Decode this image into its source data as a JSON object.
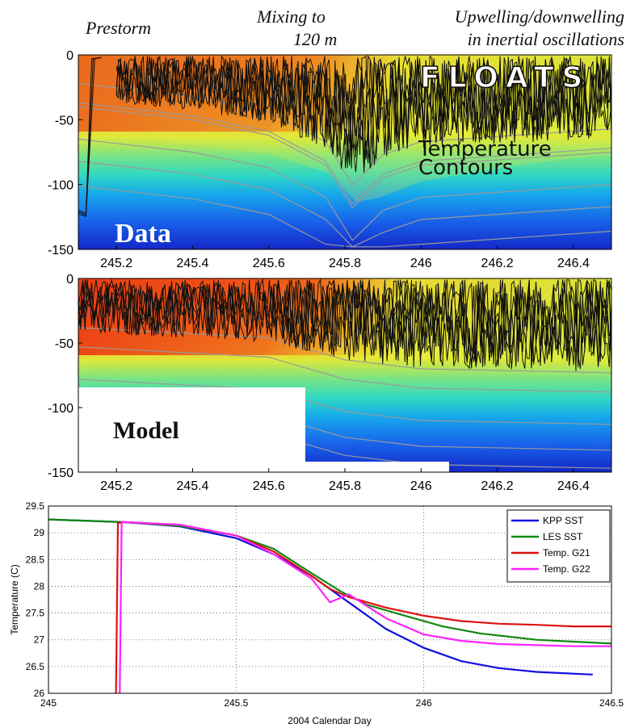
{
  "annotations": {
    "prestorm": "Prestorm",
    "mixing_line1": "Mixing to",
    "mixing_line2": "120 m",
    "upwelling_line1": "Upwelling/downwelling",
    "upwelling_line2": "in inertial oscillations"
  },
  "panel_labels": {
    "floats": "FLOATS",
    "temp_contours_line1": "Temperature",
    "temp_contours_line2": "Contours",
    "data": "Data",
    "model": "Model"
  },
  "colors": {
    "kpp": "#1010e0",
    "les": "#118811",
    "g21": "#dd1111",
    "g22": "#ff22ff",
    "float_track": "#111111",
    "contour": "#9a9a9a"
  },
  "chart_data": [
    {
      "type": "heatmap",
      "panel": "Data",
      "xlim": [
        245.1,
        246.5
      ],
      "ylim": [
        -150,
        0
      ],
      "x_ticks": [
        "245.2",
        "245.4",
        "245.6",
        "245.8",
        "246",
        "246.2",
        "246.4"
      ],
      "y_ticks": [
        "0",
        "-50",
        "-100",
        "-150"
      ],
      "mixed_layer_depth": [
        {
          "x": 245.1,
          "depth": 40
        },
        {
          "x": 245.4,
          "depth": 50
        },
        {
          "x": 245.6,
          "depth": 62
        },
        {
          "x": 245.75,
          "depth": 85
        },
        {
          "x": 245.82,
          "depth": 118
        },
        {
          "x": 245.9,
          "depth": 95
        },
        {
          "x": 246.0,
          "depth": 85
        },
        {
          "x": 246.5,
          "depth": 75
        }
      ]
    },
    {
      "type": "heatmap",
      "panel": "Model",
      "xlim": [
        245.1,
        246.5
      ],
      "ylim": [
        -150,
        0
      ],
      "x_ticks": [
        "245.2",
        "245.4",
        "245.6",
        "245.8",
        "246",
        "246.2",
        "246.4"
      ],
      "y_ticks": [
        "0",
        "-50",
        "-100",
        "-150"
      ],
      "mixed_layer_depth": [
        {
          "x": 245.1,
          "depth": 50
        },
        {
          "x": 245.6,
          "depth": 58
        },
        {
          "x": 245.8,
          "depth": 75
        },
        {
          "x": 246.0,
          "depth": 82
        },
        {
          "x": 246.5,
          "depth": 85
        }
      ]
    },
    {
      "type": "line",
      "xlabel": "2004 Calendar Day",
      "ylabel": "Temperature (C)",
      "xlim": [
        245,
        246.5
      ],
      "ylim": [
        26,
        29.5
      ],
      "x_ticks": [
        "245",
        "245.5",
        "246",
        "246.5"
      ],
      "y_ticks": [
        "26",
        "26.5",
        "27",
        "27.5",
        "28",
        "28.5",
        "29",
        "29.5"
      ],
      "grid": true,
      "legend": "top-right",
      "series": [
        {
          "name": "KPP SST",
          "color": "#1010e0",
          "x": [
            245.0,
            245.2,
            245.35,
            245.5,
            245.6,
            245.7,
            245.8,
            245.9,
            246.0,
            246.1,
            246.2,
            246.3,
            246.45
          ],
          "y": [
            29.25,
            29.2,
            29.12,
            28.9,
            28.6,
            28.2,
            27.7,
            27.2,
            26.85,
            26.6,
            26.47,
            26.4,
            26.35
          ]
        },
        {
          "name": "LES SST",
          "color": "#118811",
          "x": [
            245.0,
            245.2,
            245.35,
            245.5,
            245.6,
            245.7,
            245.78,
            245.85,
            245.95,
            246.05,
            246.15,
            246.3,
            246.5
          ],
          "y": [
            29.25,
            29.2,
            29.13,
            28.95,
            28.7,
            28.25,
            27.9,
            27.65,
            27.45,
            27.25,
            27.12,
            27.0,
            26.93
          ]
        },
        {
          "name": "Temp. G21",
          "color": "#dd1111",
          "x": [
            245.18,
            245.185,
            245.2,
            245.35,
            245.5,
            245.6,
            245.7,
            245.75,
            245.8,
            245.9,
            246.0,
            246.1,
            246.2,
            246.3,
            246.4,
            246.5
          ],
          "y": [
            26.0,
            29.18,
            29.2,
            29.15,
            28.95,
            28.65,
            28.2,
            27.95,
            27.8,
            27.6,
            27.45,
            27.35,
            27.3,
            27.28,
            27.25,
            27.25
          ]
        },
        {
          "name": "Temp. G22",
          "color": "#ff22ff",
          "x": [
            245.19,
            245.195,
            245.2,
            245.35,
            245.5,
            245.6,
            245.7,
            245.75,
            245.8,
            245.9,
            246.0,
            246.1,
            246.2,
            246.3,
            246.4,
            246.5
          ],
          "y": [
            26.0,
            29.2,
            29.2,
            29.15,
            28.95,
            28.6,
            28.15,
            27.7,
            27.85,
            27.4,
            27.1,
            26.98,
            26.92,
            26.9,
            26.88,
            26.88
          ]
        }
      ]
    }
  ]
}
